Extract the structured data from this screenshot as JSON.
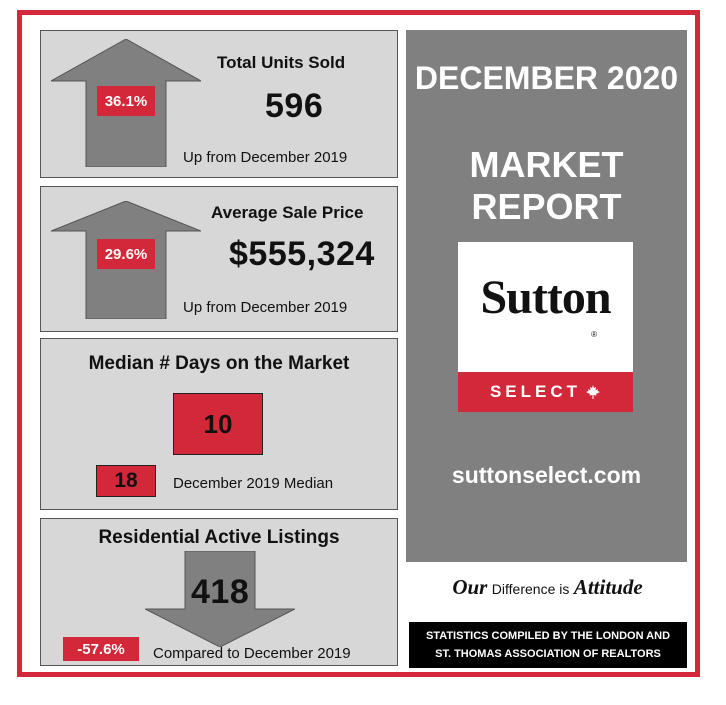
{
  "units_sold": {
    "title": "Total Units Sold",
    "value": "596",
    "change": "36.1%",
    "note": "Up from December 2019"
  },
  "avg_price": {
    "title": "Average Sale Price",
    "value": "$555,324",
    "change": "29.6%",
    "note": "Up from December 2019"
  },
  "days_on_market": {
    "title": "Median # Days on the Market",
    "value": "10",
    "prior_value": "18",
    "prior_label": "December 2019 Median"
  },
  "active_listings": {
    "title": "Residential Active Listings",
    "value": "418",
    "change": "-57.6%",
    "note": "Compared to December 2019"
  },
  "report": {
    "line1": "DECEMBER 2020",
    "line2": "MARKET REPORT",
    "website": "suttonselect.com"
  },
  "logo": {
    "word": "Sutton",
    "registered": "®",
    "banner": "SELECT",
    "banner_icon": "maple-leaf-icon"
  },
  "tagline": {
    "part1": "Our",
    "part2": "Difference is",
    "part3": "Attitude"
  },
  "footer": {
    "line1": "STATISTICS COMPILED BY THE LONDON AND",
    "line2": "ST. THOMAS ASSOCIATION OF REALTORS"
  },
  "colors": {
    "accent_red": "#d2283a",
    "panel_gray": "#d7d7d7",
    "arrow_gray": "#808080",
    "right_bg": "#808080"
  }
}
